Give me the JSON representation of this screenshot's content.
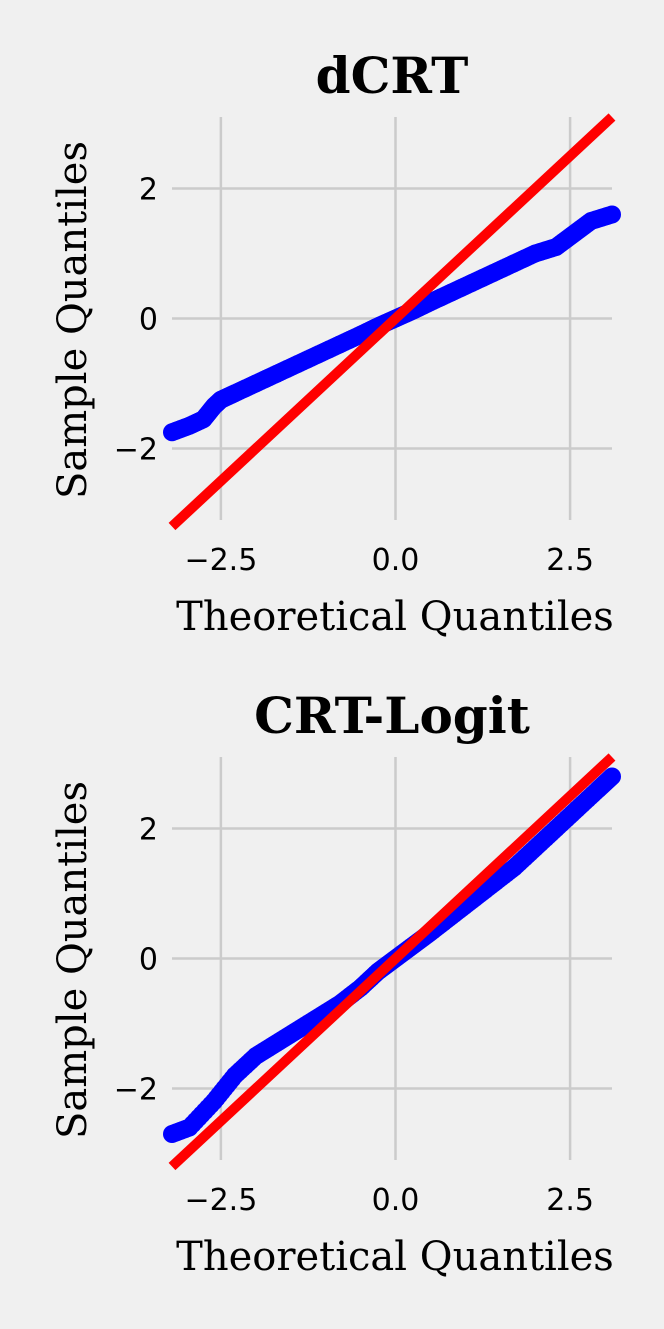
{
  "colors": {
    "background": "#f0f0f0",
    "grid": "#cbcbcb",
    "points": "#0000ff",
    "reference_line": "#ff0000"
  },
  "chart_data": [
    {
      "type": "scatter",
      "title": "dCRT",
      "xlabel": "Theoretical Quantiles",
      "ylabel": "Sample Quantiles",
      "xlim": [
        -3.2,
        3.1
      ],
      "ylim": [
        -3.1,
        3.1
      ],
      "xticks": [
        -2.5,
        0.0,
        2.5
      ],
      "xtick_labels": [
        "−2.5",
        "0.0",
        "2.5"
      ],
      "yticks": [
        -2,
        0,
        2
      ],
      "ytick_labels": [
        "−2",
        "0",
        "2"
      ],
      "grid": true,
      "reference_line": {
        "name": "",
        "slope": 1,
        "intercept": 0
      },
      "series": [
        {
          "name": "",
          "x": [
            -3.2,
            -2.95,
            -2.75,
            -2.6,
            -2.5,
            -2.3,
            -2.0,
            -1.7,
            -1.4,
            -1.1,
            -0.8,
            -0.5,
            -0.25,
            0.0,
            0.25,
            0.5,
            0.8,
            1.1,
            1.4,
            1.7,
            2.0,
            2.3,
            2.55,
            2.8,
            3.1
          ],
          "y": [
            -1.75,
            -1.65,
            -1.55,
            -1.35,
            -1.25,
            -1.15,
            -1.0,
            -0.85,
            -0.7,
            -0.55,
            -0.4,
            -0.25,
            -0.12,
            0.0,
            0.12,
            0.25,
            0.4,
            0.55,
            0.7,
            0.85,
            1.0,
            1.1,
            1.3,
            1.5,
            1.6
          ]
        }
      ]
    },
    {
      "type": "scatter",
      "title": "CRT-Logit",
      "xlabel": "Theoretical Quantiles",
      "ylabel": "Sample Quantiles",
      "xlim": [
        -3.2,
        3.1
      ],
      "ylim": [
        -3.1,
        3.1
      ],
      "xticks": [
        -2.5,
        0.0,
        2.5
      ],
      "xtick_labels": [
        "−2.5",
        "0.0",
        "2.5"
      ],
      "yticks": [
        -2,
        0,
        2
      ],
      "ytick_labels": [
        "−2",
        "0",
        "2"
      ],
      "grid": true,
      "reference_line": {
        "name": "",
        "slope": 1,
        "intercept": 0
      },
      "series": [
        {
          "name": "",
          "x": [
            -3.2,
            -2.95,
            -2.6,
            -2.3,
            -2.0,
            -1.7,
            -1.4,
            -1.1,
            -0.8,
            -0.5,
            -0.25,
            0.0,
            0.25,
            0.5,
            0.8,
            1.1,
            1.4,
            1.7,
            2.0,
            2.3,
            2.6,
            2.9,
            3.1
          ],
          "y": [
            -2.7,
            -2.6,
            -2.2,
            -1.8,
            -1.5,
            -1.3,
            -1.1,
            -0.9,
            -0.7,
            -0.45,
            -0.2,
            0.0,
            0.2,
            0.4,
            0.65,
            0.9,
            1.15,
            1.4,
            1.7,
            2.0,
            2.3,
            2.6,
            2.8
          ]
        }
      ]
    }
  ]
}
